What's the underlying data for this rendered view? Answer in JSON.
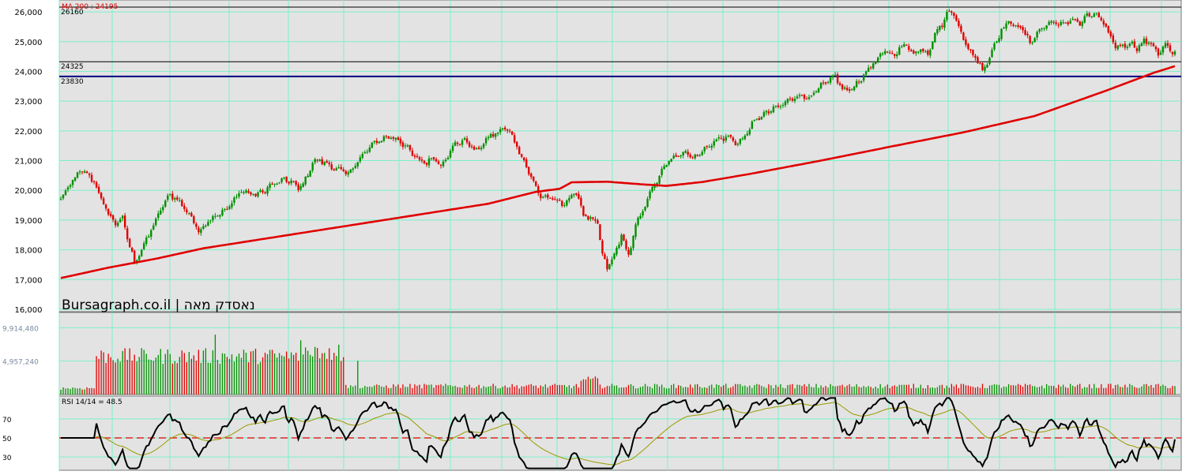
{
  "chart_data": {
    "type": "candlestick",
    "watermark": "Bursagraph.co.il | נאסדק מאה",
    "price_panel": {
      "ma_label": "MA 200 : 24195",
      "y_ticks": [
        "26,000",
        "25,000",
        "24,000",
        "23,000",
        "22,000",
        "21,000",
        "20,000",
        "19,000",
        "18,000",
        "17,000",
        "16,000"
      ],
      "y_tick_values": [
        26000,
        25000,
        24000,
        23000,
        22000,
        21000,
        20000,
        19000,
        18000,
        17000,
        16000
      ],
      "ylim": [
        15920,
        26400
      ],
      "levels": [
        {
          "label": "26160",
          "value": 26160,
          "color": "#000000"
        },
        {
          "label": "24325",
          "value": 24325,
          "color": "#000000"
        },
        {
          "label": "23830",
          "value": 23830,
          "color": "#000080"
        }
      ],
      "close_path": [
        [
          0,
          19700
        ],
        [
          4,
          20200
        ],
        [
          8,
          20650
        ],
        [
          11,
          20550
        ],
        [
          14,
          20300
        ],
        [
          17,
          19700
        ],
        [
          20,
          19200
        ],
        [
          23,
          18900
        ],
        [
          26,
          19050
        ],
        [
          29,
          18100
        ],
        [
          31,
          17600
        ],
        [
          34,
          18000
        ],
        [
          37,
          18500
        ],
        [
          40,
          19000
        ],
        [
          43,
          19500
        ],
        [
          46,
          19850
        ],
        [
          49,
          19700
        ],
        [
          52,
          19400
        ],
        [
          55,
          19100
        ],
        [
          58,
          18600
        ],
        [
          61,
          18900
        ],
        [
          64,
          19100
        ],
        [
          67,
          19250
        ],
        [
          70,
          19350
        ],
        [
          73,
          19700
        ],
        [
          76,
          20000
        ],
        [
          79,
          19900
        ],
        [
          82,
          19850
        ],
        [
          85,
          19950
        ],
        [
          88,
          20150
        ],
        [
          91,
          20250
        ],
        [
          94,
          20350
        ],
        [
          97,
          20300
        ],
        [
          100,
          20050
        ],
        [
          103,
          20350
        ],
        [
          106,
          20950
        ],
        [
          109,
          21000
        ],
        [
          112,
          20900
        ],
        [
          115,
          20750
        ],
        [
          118,
          20650
        ],
        [
          121,
          20550
        ],
        [
          124,
          20900
        ],
        [
          127,
          21150
        ],
        [
          130,
          21450
        ],
        [
          133,
          21650
        ],
        [
          136,
          21750
        ],
        [
          139,
          21800
        ],
        [
          142,
          21700
        ],
        [
          145,
          21500
        ],
        [
          148,
          21200
        ],
        [
          151,
          21000
        ],
        [
          154,
          20950
        ],
        [
          157,
          21100
        ],
        [
          160,
          20850
        ],
        [
          163,
          21200
        ],
        [
          166,
          21550
        ],
        [
          169,
          21700
        ],
        [
          172,
          21550
        ],
        [
          175,
          21300
        ],
        [
          178,
          21600
        ],
        [
          181,
          21850
        ],
        [
          184,
          21950
        ],
        [
          187,
          22100
        ],
        [
          190,
          21850
        ],
        [
          193,
          21300
        ],
        [
          196,
          20800
        ],
        [
          199,
          20250
        ],
        [
          202,
          19800
        ],
        [
          205,
          19750
        ],
        [
          208,
          19650
        ],
        [
          211,
          19550
        ],
        [
          214,
          19700
        ],
        [
          217,
          19950
        ],
        [
          220,
          19200
        ],
        [
          223,
          19000
        ],
        [
          226,
          18900
        ],
        [
          228,
          17800
        ],
        [
          230,
          17400
        ],
        [
          233,
          17800
        ],
        [
          236,
          18500
        ],
        [
          239,
          17800
        ],
        [
          242,
          18800
        ],
        [
          245,
          19300
        ],
        [
          248,
          19950
        ],
        [
          251,
          20300
        ],
        [
          254,
          20800
        ],
        [
          257,
          21050
        ],
        [
          260,
          21150
        ],
        [
          263,
          21350
        ],
        [
          266,
          21100
        ],
        [
          269,
          21250
        ],
        [
          272,
          21450
        ],
        [
          275,
          21650
        ],
        [
          278,
          21750
        ],
        [
          281,
          21800
        ],
        [
          284,
          21600
        ],
        [
          287,
          21700
        ],
        [
          290,
          22100
        ],
        [
          293,
          22400
        ],
        [
          296,
          22550
        ],
        [
          299,
          22700
        ],
        [
          302,
          22800
        ],
        [
          305,
          22950
        ],
        [
          308,
          23100
        ],
        [
          311,
          23200
        ],
        [
          314,
          23100
        ],
        [
          317,
          23250
        ],
        [
          320,
          23500
        ],
        [
          323,
          23650
        ],
        [
          326,
          23850
        ],
        [
          329,
          23400
        ],
        [
          332,
          23350
        ],
        [
          335,
          23600
        ],
        [
          338,
          23850
        ],
        [
          341,
          24200
        ],
        [
          344,
          24400
        ],
        [
          347,
          24700
        ],
        [
          350,
          24550
        ],
        [
          353,
          24750
        ],
        [
          356,
          24900
        ],
        [
          359,
          24600
        ],
        [
          362,
          24750
        ],
        [
          365,
          24600
        ],
        [
          368,
          25300
        ],
        [
          371,
          25600
        ],
        [
          374,
          26050
        ],
        [
          376,
          25900
        ],
        [
          379,
          25350
        ],
        [
          382,
          24700
        ],
        [
          385,
          24500
        ],
        [
          388,
          24050
        ],
        [
          390,
          24300
        ],
        [
          393,
          24900
        ],
        [
          396,
          25400
        ],
        [
          399,
          25650
        ],
        [
          402,
          25550
        ],
        [
          405,
          25400
        ],
        [
          408,
          24950
        ],
        [
          411,
          25300
        ],
        [
          414,
          25500
        ],
        [
          417,
          25700
        ],
        [
          420,
          25550
        ],
        [
          423,
          25650
        ],
        [
          426,
          25750
        ],
        [
          429,
          25600
        ],
        [
          432,
          25850
        ],
        [
          435,
          25950
        ],
        [
          438,
          25700
        ],
        [
          441,
          25300
        ],
        [
          444,
          24850
        ],
        [
          447,
          24850
        ],
        [
          450,
          24950
        ],
        [
          453,
          24800
        ],
        [
          456,
          25000
        ],
        [
          459,
          24950
        ],
        [
          462,
          24600
        ],
        [
          465,
          24900
        ],
        [
          468,
          24600
        ]
      ],
      "ma200_path": [
        [
          0,
          17050
        ],
        [
          20,
          17400
        ],
        [
          40,
          17700
        ],
        [
          60,
          18050
        ],
        [
          80,
          18300
        ],
        [
          100,
          18550
        ],
        [
          120,
          18800
        ],
        [
          140,
          19050
        ],
        [
          160,
          19300
        ],
        [
          180,
          19550
        ],
        [
          200,
          19950
        ],
        [
          210,
          20050
        ],
        [
          215,
          20270
        ],
        [
          230,
          20290
        ],
        [
          245,
          20200
        ],
        [
          255,
          20150
        ],
        [
          270,
          20280
        ],
        [
          290,
          20550
        ],
        [
          320,
          21000
        ],
        [
          350,
          21480
        ],
        [
          380,
          21950
        ],
        [
          410,
          22500
        ],
        [
          440,
          23350
        ],
        [
          460,
          23950
        ],
        [
          470,
          24200
        ]
      ]
    },
    "volume_panel": {
      "y_ticks": [
        "9,914,480",
        "4,957,240"
      ],
      "y_tick_values": [
        9914480,
        4957240
      ],
      "ylim": [
        0,
        12180000
      ]
    },
    "rsi_panel": {
      "label": "RSI 14/14 = 48.5",
      "y_ticks": [
        "70",
        "50",
        "30"
      ],
      "y_tick_values": [
        70,
        50,
        30
      ],
      "ylim": [
        16,
        94
      ],
      "midline": 50,
      "last_value": 48.5,
      "signal_line_color": "#9a9a00",
      "rsi_line_color": "#000000"
    },
    "colors": {
      "up": "#009000",
      "down": "#e00000",
      "ma": "#e00000",
      "grid": "#7cf0c8",
      "panel_bg": "#e3e3e3"
    },
    "grid": true
  }
}
